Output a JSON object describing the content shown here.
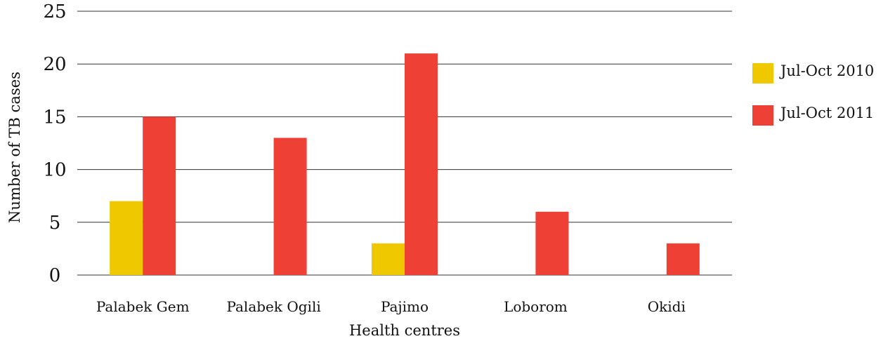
{
  "chart_data": {
    "type": "bar",
    "title": "",
    "xlabel": "Health centres",
    "ylabel": "Number of TB cases",
    "categories": [
      "Palabek Gem",
      "Palabek Ogili",
      "Pajimo",
      "Loborom",
      "Okidi"
    ],
    "series": [
      {
        "name": "Jul-Oct 2010",
        "color": "#f0c800",
        "values": [
          7,
          0,
          3,
          0,
          0
        ]
      },
      {
        "name": "Jul-Oct 2011",
        "color": "#ee4035",
        "values": [
          15,
          13,
          21,
          6,
          3
        ]
      }
    ],
    "yticks": [
      "0",
      "5",
      "10",
      "15",
      "20",
      "25"
    ],
    "ylim": [
      0,
      25
    ],
    "grid": true,
    "legend_position": "right"
  }
}
